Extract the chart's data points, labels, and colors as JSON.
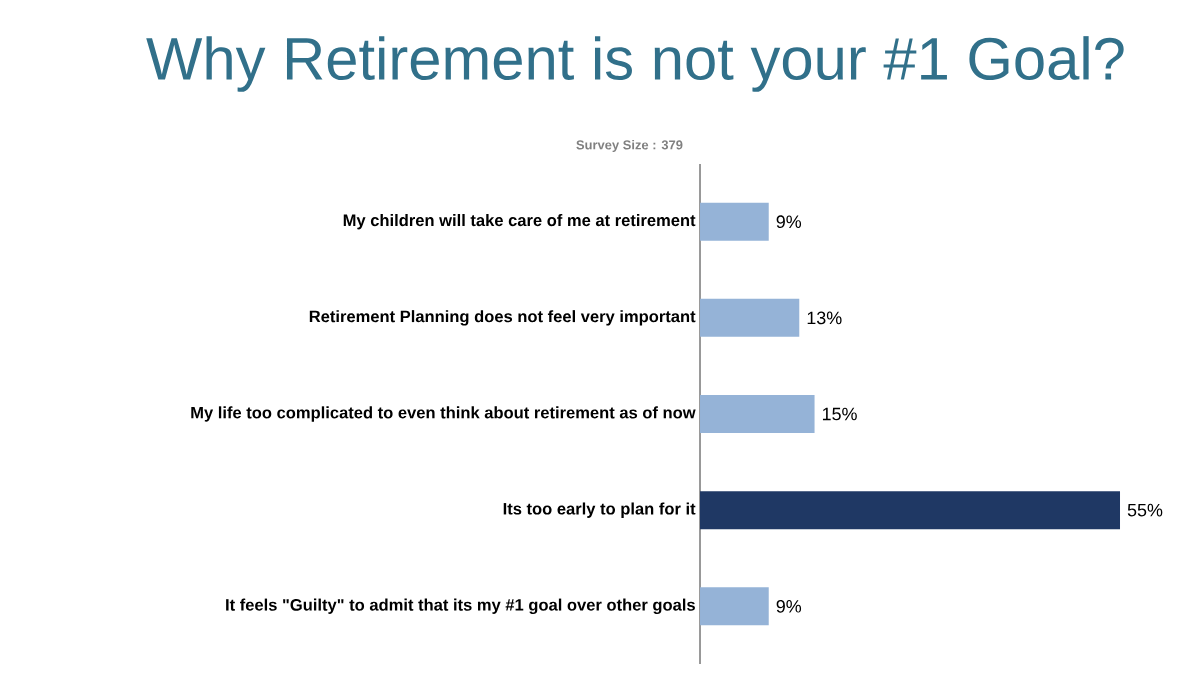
{
  "chart_data": {
    "type": "bar",
    "orientation": "horizontal",
    "title": "Why Retirement is not your #1 Goal?",
    "annotations": [
      "Survey Size : 379"
    ],
    "categories": [
      "My children will take care of me at retirement",
      "Retirement Planning does not feel very important",
      "My life  too complicated to even think about retirement as of now",
      "Its too early to plan for it",
      "It feels \"Guilty\" to admit that its my #1 goal over other goals"
    ],
    "values": [
      9,
      13,
      15,
      55,
      9
    ],
    "value_labels": [
      "9%",
      "13%",
      "15%",
      "55%",
      "9%"
    ],
    "colors": [
      "#95b3d7",
      "#95b3d7",
      "#95b3d7",
      "#1f3864",
      "#95b3d7"
    ]
  }
}
